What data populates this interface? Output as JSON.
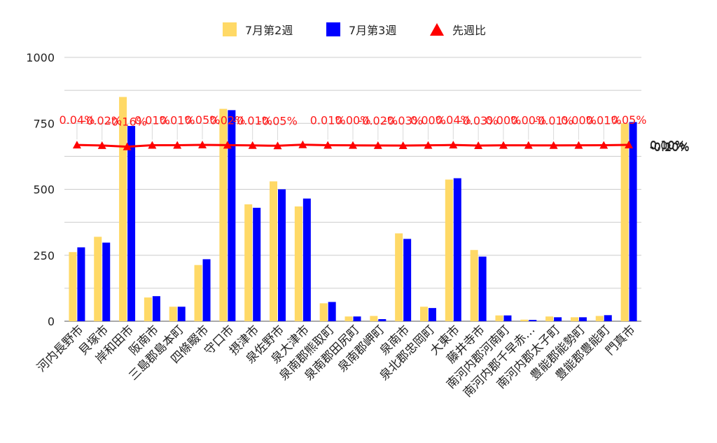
{
  "chart_data": {
    "type": "bar",
    "categories": [
      "河内長野市",
      "貝塚市",
      "岸和田市",
      "阪南市",
      "三島郡島本町",
      "四條畷市",
      "守口市",
      "摂津市",
      "泉佐野市",
      "泉大津市",
      "泉南郡熊取町",
      "泉南郡田尻町",
      "泉南郡岬町",
      "泉南市",
      "泉北郡忠岡町",
      "大東市",
      "藤井寺市",
      "南河内郡河南町",
      "南河内郡千早赤…",
      "南河内郡太子町",
      "豊能郡能勢町",
      "豊能郡豊能町",
      "門真市"
    ],
    "series": [
      {
        "name": "7月第2週",
        "type": "bar",
        "axis": "left",
        "color": "#ffd966",
        "values": [
          262,
          320,
          850,
          90,
          55,
          213,
          805,
          443,
          530,
          435,
          68,
          18,
          20,
          333,
          55,
          537,
          270,
          22,
          6,
          18,
          15,
          20,
          750
        ]
      },
      {
        "name": "7月第3週",
        "type": "bar",
        "axis": "left",
        "color": "#0000ff",
        "values": [
          280,
          298,
          740,
          95,
          55,
          235,
          800,
          430,
          500,
          465,
          73,
          18,
          8,
          312,
          50,
          542,
          245,
          22,
          5,
          15,
          15,
          23,
          755
        ]
      },
      {
        "name": "先週比",
        "type": "line",
        "axis": "right",
        "color": "#ff0000",
        "values": [
          0.04,
          -0.02,
          -0.16,
          0.01,
          0.01,
          0.05,
          0.02,
          -0.01,
          -0.05,
          0.07,
          0.01,
          0.0,
          -0.02,
          -0.03,
          0.0,
          0.04,
          -0.03,
          0.0,
          0.0,
          -0.01,
          0.0,
          0.01,
          0.05
        ],
        "labels": [
          "0.04%",
          "-0.02%",
          "-0.16%",
          "0.01%",
          "0.01%",
          "0.05%",
          "0.02%",
          "-0.01%",
          "-0.05%",
          "",
          "0.01%",
          "0.00%",
          "-0.02%",
          "-0.03%",
          "0.00%",
          "0.04%",
          "-0.03%",
          "0.00%",
          "0.00%",
          "-0.01%",
          "0.00%",
          "0.01%",
          "0.05%"
        ]
      }
    ],
    "y_left": {
      "min": 0,
      "max": 1000,
      "ticks": [
        "0",
        "250",
        "500",
        "750",
        "1000"
      ]
    },
    "y_right": {
      "min": -0.2,
      "max": 0.1,
      "ticks": [
        "-0.20%",
        "-0.10%",
        "0.00%",
        "0.10%"
      ]
    },
    "grid": true,
    "legend": "top-center"
  }
}
